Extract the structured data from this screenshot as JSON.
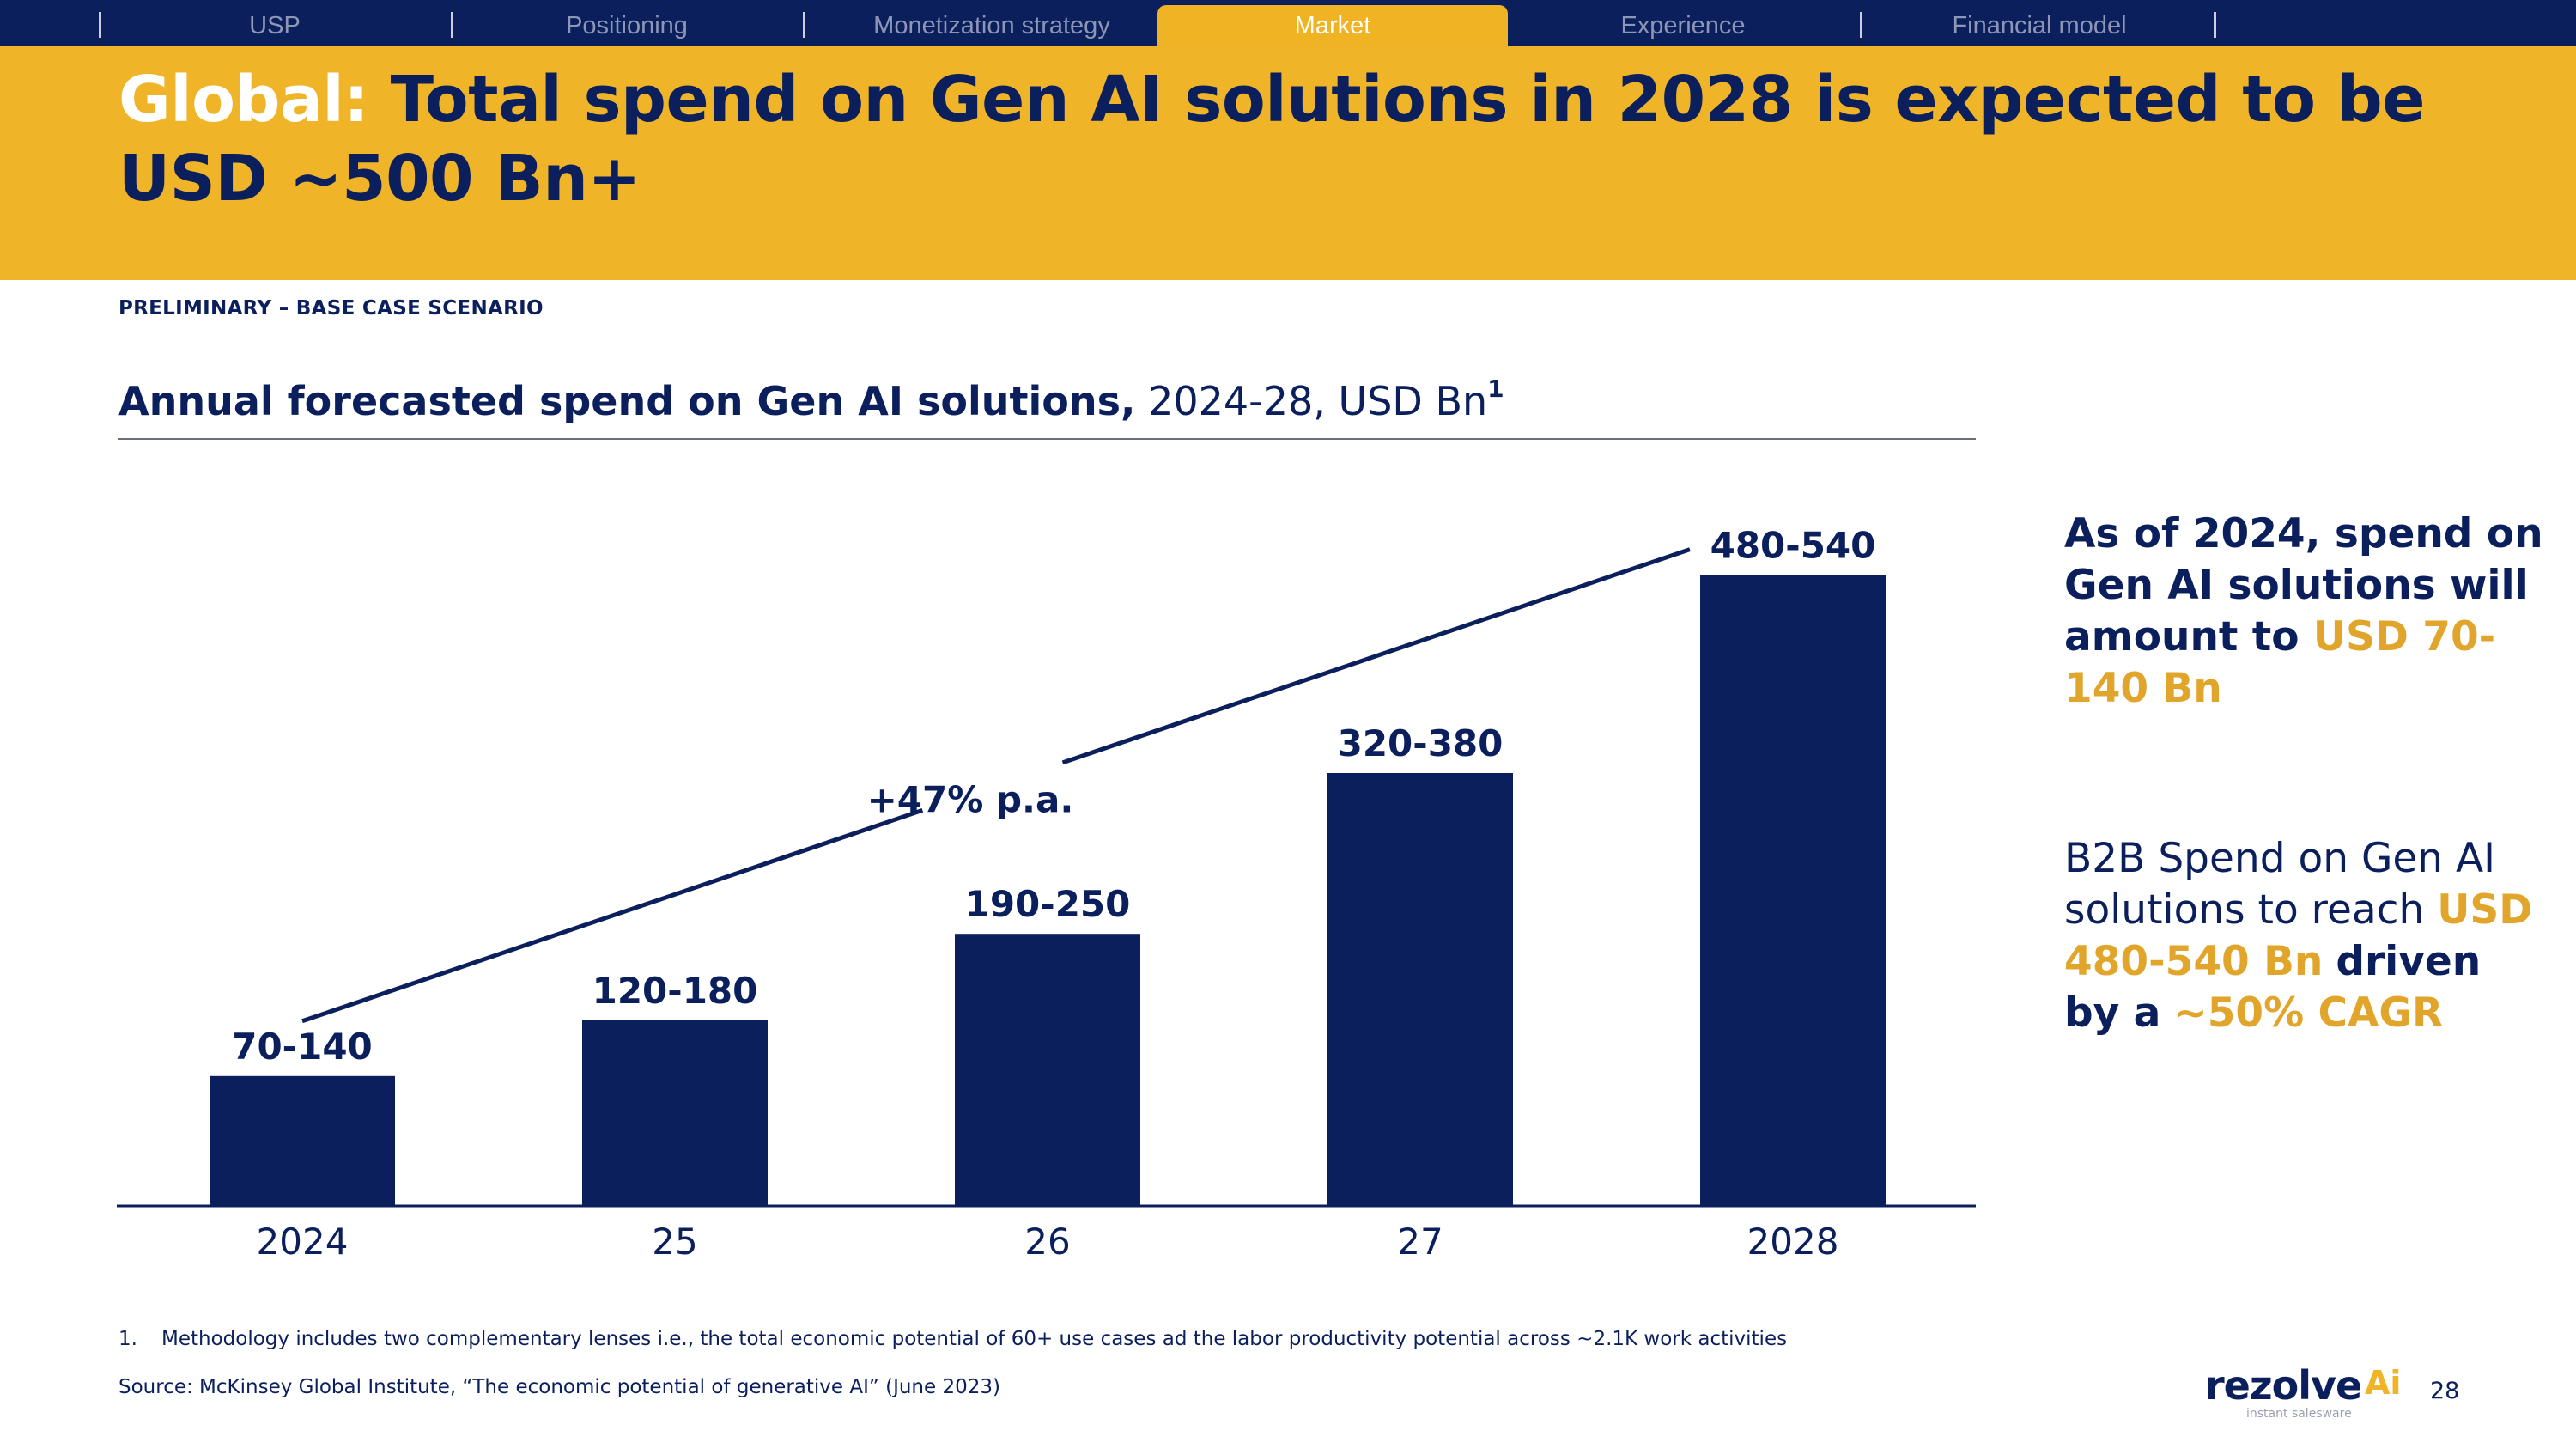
{
  "nav": {
    "tabs": [
      {
        "label": "USP",
        "active": false
      },
      {
        "label": "Positioning",
        "active": false
      },
      {
        "label": "Monetization strategy",
        "active": false
      },
      {
        "label": "Market",
        "active": true
      },
      {
        "label": "Experience",
        "active": false
      },
      {
        "label": "Financial model",
        "active": false
      }
    ]
  },
  "header": {
    "title_prefix": "Global:",
    "title_main": "Total spend on Gen AI solutions in 2028 is expected to be USD ~500 Bn+",
    "scenario_label": "PRELIMINARY – BASE CASE SCENARIO"
  },
  "chart_title": {
    "bold": "Annual forecasted spend on Gen AI solutions,",
    "regular": "2024-28, USD Bn",
    "footnote_ref": "1"
  },
  "chart_data": {
    "type": "bar",
    "categories": [
      "2024",
      "25",
      "26",
      "27",
      "2028"
    ],
    "values": [
      105,
      150,
      220,
      350,
      510
    ],
    "data_labels": [
      "70-140",
      "120-180",
      "190-250",
      "320-380",
      "480-540"
    ],
    "growth_annotation": "+47% p.a.",
    "ylim": [
      0,
      550
    ],
    "bar_color": "#0b1f5c",
    "title": "Annual forecasted spend on Gen AI solutions, 2024-28, USD Bn"
  },
  "callout": {
    "primary_prefix": "As of 2024, spend on Gen AI solutions will amount to",
    "primary_highlight": "USD 70-140 Bn",
    "secondary_prefix": "B2B Spend on Gen AI solutions to reach",
    "secondary_highlight": "USD 480-540 Bn",
    "secondary_suffix": "driven by a",
    "secondary_cagr": "~50% CAGR"
  },
  "footer": {
    "footnote_number": "1.",
    "footnote_text": "Methodology includes two complementary lenses i.e., the total economic potential of 60+ use cases ad the labor productivity potential across ~2.1K work activities",
    "source": "Source: McKinsey Global Institute, “The economic potential of generative AI” (June 2023)",
    "logo_word": "rezolve",
    "logo_ai": "Ai",
    "logo_tagline": "instant salesware",
    "page_number": "28"
  },
  "colors": {
    "navy": "#0b1f5c",
    "gold": "#efb427",
    "gold_text": "#e0a52a"
  }
}
